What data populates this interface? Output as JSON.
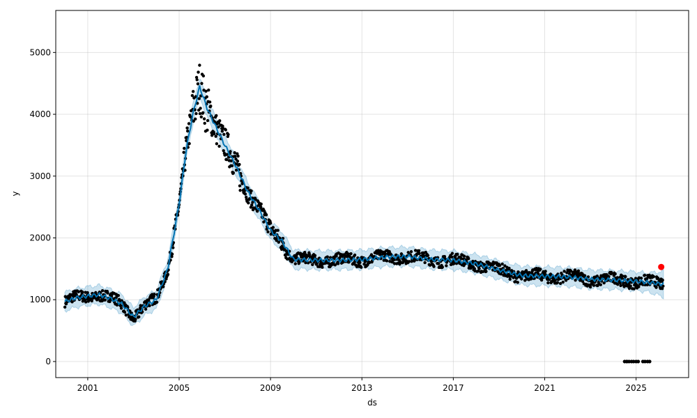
{
  "chart_data": {
    "type": "scatter",
    "xlabel": "ds",
    "ylabel": "y",
    "xlim": [
      1999.6,
      2027.3
    ],
    "ylim": [
      -260,
      5680
    ],
    "x_ticks": [
      2001,
      2005,
      2009,
      2013,
      2017,
      2021,
      2025
    ],
    "y_ticks": [
      0,
      1000,
      2000,
      3000,
      4000,
      5000
    ],
    "grid": true,
    "colors": {
      "observed": "#000000",
      "forecast_line": "#0072B2",
      "uncertainty_band": "#0072B2",
      "highlight_point": "#ff0000"
    },
    "forecast": {
      "x": [
        2000.0,
        2000.5,
        2001.0,
        2001.5,
        2002.0,
        2002.5,
        2003.0,
        2003.5,
        2004.0,
        2004.5,
        2005.0,
        2005.3,
        2005.6,
        2005.9,
        2006.2,
        2006.6,
        2007.0,
        2007.5,
        2008.0,
        2008.5,
        2009.0,
        2009.5,
        2010.0,
        2011.0,
        2012.0,
        2013.0,
        2014.0,
        2015.0,
        2016.0,
        2017.0,
        2018.0,
        2019.0,
        2020.0,
        2021.0,
        2022.0,
        2023.0,
        2024.0,
        2025.0,
        2026.0,
        2026.2
      ],
      "yhat": [
        970,
        1030,
        1060,
        1080,
        1020,
        930,
        720,
        900,
        1000,
        1500,
        2550,
        3400,
        4000,
        4450,
        4120,
        3800,
        3500,
        3150,
        2750,
        2450,
        2120,
        1950,
        1650,
        1640,
        1640,
        1650,
        1690,
        1700,
        1650,
        1640,
        1580,
        1480,
        1390,
        1380,
        1370,
        1330,
        1320,
        1300,
        1260,
        1250
      ],
      "band_half_width": 150
    },
    "observed_segments": [
      {
        "x_start": 2000.0,
        "x_end": 2026.2
      }
    ],
    "outliers": {
      "x": [
        2024.5,
        2024.6,
        2024.8,
        2025.0,
        2025.3,
        2025.5
      ],
      "y": [
        0,
        0,
        0,
        0,
        0,
        0
      ]
    },
    "highlight_point": {
      "x": 2026.1,
      "y": 1530
    }
  }
}
